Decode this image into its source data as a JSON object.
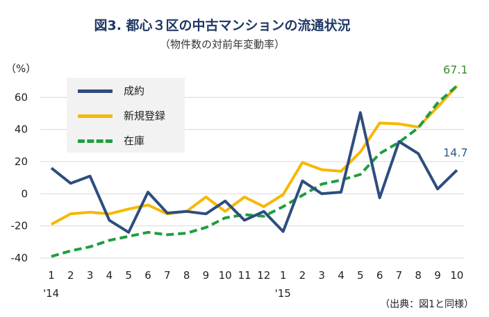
{
  "header": {
    "title": "図3. 都心３区の中古マンションの流通状況",
    "subtitle": "（物件数の対前年変動率）",
    "unit": "（%）",
    "source": "（出典：図1と同様）"
  },
  "chart_data": {
    "type": "line",
    "categories": [
      "1",
      "2",
      "3",
      "4",
      "5",
      "6",
      "7",
      "8",
      "9",
      "10",
      "11",
      "12",
      "1",
      "2",
      "3",
      "4",
      "5",
      "6",
      "7",
      "8",
      "9",
      "10"
    ],
    "year_labels": [
      {
        "index": 0,
        "label": "'14"
      },
      {
        "index": 12,
        "label": "'15"
      }
    ],
    "ylim": [
      -40,
      80
    ],
    "yticks": [
      -40,
      -20,
      0,
      20,
      40,
      60
    ],
    "grid": true,
    "legend_position": "top-left",
    "series": [
      {
        "name": "成約",
        "color": "#2e4d7f",
        "dash": "solid",
        "values": [
          16,
          6.5,
          11,
          -16.5,
          -24,
          1,
          -12,
          -11,
          -12.5,
          -4.5,
          -16.5,
          -11,
          -23.5,
          8,
          0,
          1,
          50.5,
          -2.5,
          32.5,
          25,
          3,
          14.7
        ],
        "end_label": "14.7",
        "end_label_color": "#2e5c8a"
      },
      {
        "name": "新規登録",
        "color": "#f5b800",
        "dash": "solid",
        "values": [
          -19,
          -12.5,
          -11.5,
          -12.5,
          -9.5,
          -7,
          -12.5,
          -11,
          -2,
          -11,
          -2,
          -8,
          -0.5,
          19.5,
          15,
          14,
          26,
          44,
          43.5,
          41.5,
          54,
          67.1
        ],
        "end_label": null,
        "end_label_color": null
      },
      {
        "name": "在庫",
        "color": "#1e9e3e",
        "dash": "dashed",
        "values": [
          -39,
          -35.5,
          -33,
          -29,
          -26.5,
          -24,
          -25.5,
          -24.5,
          -21,
          -15,
          -13,
          -14,
          -8,
          -1,
          6,
          8.5,
          12,
          25,
          32,
          41,
          56.5,
          67.1
        ],
        "end_label": "67.1",
        "end_label_color": "#3b8a2f"
      }
    ]
  }
}
